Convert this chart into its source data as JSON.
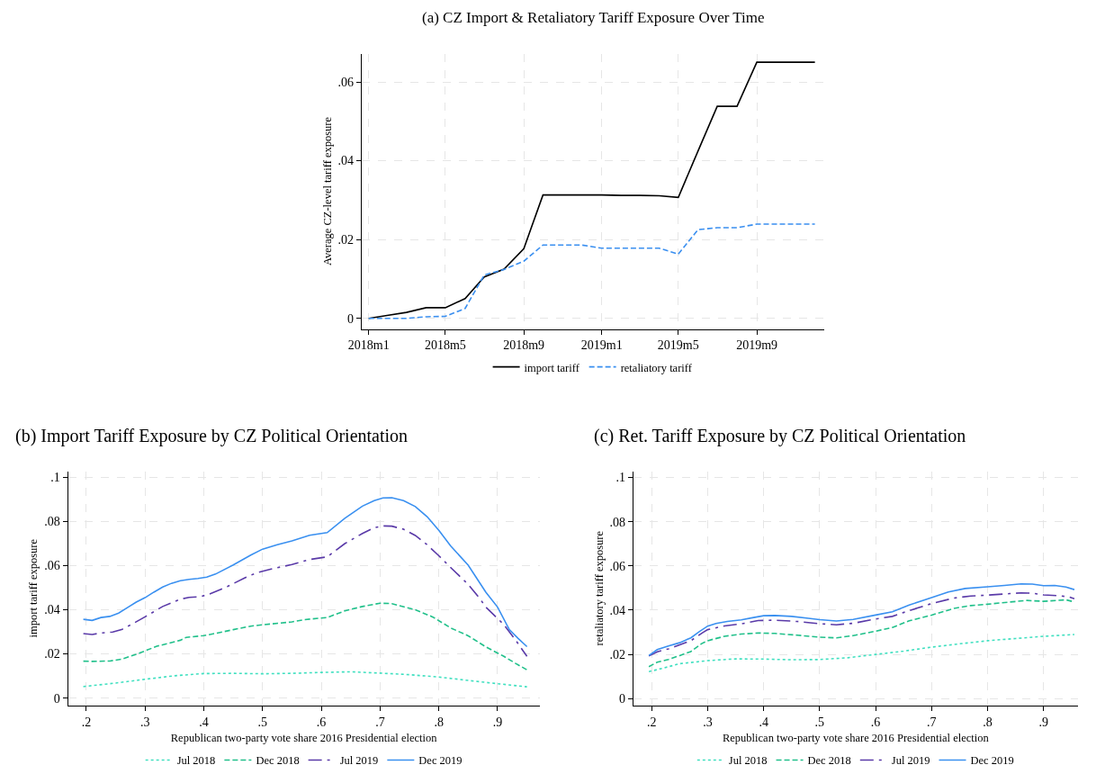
{
  "chart_data": [
    {
      "type": "line",
      "title": "(a) CZ Import & Retaliatory Tariff Exposure Over Time",
      "ylabel": "Average CZ-level tariff exposure",
      "x": [
        "2018-01",
        "2018-02",
        "2018-03",
        "2018-04",
        "2018-05",
        "2018-06",
        "2018-07",
        "2018-08",
        "2018-09",
        "2018-10",
        "2018-11",
        "2018-12",
        "2019-01",
        "2019-02",
        "2019-03",
        "2019-04",
        "2019-05",
        "2019-06",
        "2019-07",
        "2019-08",
        "2019-09",
        "2019-10",
        "2019-11",
        "2019-12"
      ],
      "series": [
        {
          "name": "import tariff",
          "color": "#000000",
          "line_style": "solid",
          "values": [
            0,
            0.0008,
            0.0015,
            0.0027,
            0.0027,
            0.005,
            0.0105,
            0.0125,
            0.0177,
            0.0313,
            0.0313,
            0.0313,
            0.0313,
            0.0312,
            0.0312,
            0.0311,
            0.0307,
            0.0425,
            0.0538,
            0.0538,
            0.065,
            0.065,
            0.065,
            0.065
          ]
        },
        {
          "name": "retaliatory tariff",
          "color": "#3a8ff0",
          "line_style": "dashed",
          "values": [
            0,
            0,
            0,
            0.0004,
            0.0005,
            0.0025,
            0.011,
            0.0124,
            0.0145,
            0.0186,
            0.0186,
            0.0186,
            0.0178,
            0.0178,
            0.0178,
            0.0178,
            0.0163,
            0.0225,
            0.023,
            0.023,
            0.0239,
            0.0239,
            0.0239,
            0.0239
          ]
        }
      ],
      "xlim": [
        "2017-12-21",
        "2019-12-16"
      ],
      "ylim": [
        -0.0027,
        0.0672
      ],
      "xticks": [
        {
          "value": "2018-01",
          "label": "2018m1"
        },
        {
          "value": "2018-05",
          "label": "2018m5"
        },
        {
          "value": "2018-09",
          "label": "2018m9"
        },
        {
          "value": "2019-01",
          "label": "2019m1"
        },
        {
          "value": "2019-05",
          "label": "2019m5"
        },
        {
          "value": "2019-09",
          "label": "2019m9"
        }
      ],
      "yticks": [
        {
          "value": 0,
          "label": "0"
        },
        {
          "value": 0.02,
          "label": ".02"
        },
        {
          "value": 0.04,
          "label": ".04"
        },
        {
          "value": 0.06,
          "label": ".06"
        }
      ],
      "grid": true,
      "legend": "bottom"
    },
    {
      "type": "line",
      "title": "(b) Import Tariff Exposure by CZ Political Orientation",
      "xlabel": "Republican two-party vote share 2016 Presidential election",
      "ylabel": "import tariff exposure",
      "series": [
        {
          "name": "Jul 2018",
          "color": "#40e0c0",
          "line_style": "dotted",
          "x": [
            0.195,
            0.25,
            0.3,
            0.35,
            0.4,
            0.45,
            0.5,
            0.55,
            0.6,
            0.65,
            0.7,
            0.75,
            0.8,
            0.85,
            0.9,
            0.95
          ],
          "values": [
            0.0052,
            0.0068,
            0.0085,
            0.0101,
            0.0111,
            0.0112,
            0.011,
            0.0112,
            0.0116,
            0.0119,
            0.0113,
            0.0106,
            0.0095,
            0.008,
            0.0065,
            0.0051
          ]
        },
        {
          "name": "Dec 2018",
          "color": "#20c08a",
          "line_style": "dashed",
          "x": [
            0.195,
            0.21,
            0.24,
            0.26,
            0.29,
            0.32,
            0.34,
            0.36,
            0.37,
            0.4,
            0.42,
            0.45,
            0.48,
            0.5,
            0.55,
            0.57,
            0.61,
            0.64,
            0.67,
            0.7,
            0.72,
            0.76,
            0.79,
            0.82,
            0.85,
            0.88,
            0.91,
            0.93,
            0.95
          ],
          "values": [
            0.0167,
            0.0166,
            0.0168,
            0.0176,
            0.0203,
            0.0235,
            0.0248,
            0.0262,
            0.0275,
            0.0283,
            0.0293,
            0.031,
            0.0326,
            0.0332,
            0.0345,
            0.0355,
            0.0365,
            0.0395,
            0.0415,
            0.043,
            0.0428,
            0.04,
            0.0367,
            0.0318,
            0.0282,
            0.0232,
            0.019,
            0.0158,
            0.0128
          ]
        },
        {
          "name": "Jul 2019",
          "color": "#5a3aa8",
          "line_style": "dashdot",
          "x": [
            0.195,
            0.21,
            0.225,
            0.245,
            0.26,
            0.28,
            0.3,
            0.33,
            0.36,
            0.375,
            0.395,
            0.41,
            0.44,
            0.47,
            0.49,
            0.52,
            0.55,
            0.58,
            0.61,
            0.64,
            0.67,
            0.69,
            0.705,
            0.72,
            0.74,
            0.76,
            0.78,
            0.8,
            0.82,
            0.85,
            0.87,
            0.88,
            0.91,
            0.93,
            0.95
          ],
          "values": [
            0.0292,
            0.0288,
            0.0295,
            0.0299,
            0.031,
            0.0338,
            0.0368,
            0.0415,
            0.0448,
            0.0456,
            0.046,
            0.0472,
            0.0505,
            0.0545,
            0.0568,
            0.0588,
            0.0605,
            0.0628,
            0.064,
            0.07,
            0.0746,
            0.0772,
            0.078,
            0.0779,
            0.0765,
            0.0737,
            0.0695,
            0.0645,
            0.0592,
            0.0515,
            0.045,
            0.0412,
            0.0335,
            0.0265,
            0.0189
          ]
        },
        {
          "name": "Dec 2019",
          "color": "#3a90f0",
          "line_style": "solid",
          "x": [
            0.195,
            0.21,
            0.225,
            0.24,
            0.255,
            0.27,
            0.285,
            0.3,
            0.315,
            0.33,
            0.345,
            0.36,
            0.375,
            0.39,
            0.405,
            0.42,
            0.45,
            0.48,
            0.5,
            0.525,
            0.55,
            0.58,
            0.61,
            0.64,
            0.67,
            0.69,
            0.705,
            0.72,
            0.74,
            0.76,
            0.78,
            0.8,
            0.82,
            0.85,
            0.88,
            0.9,
            0.92,
            0.935,
            0.95
          ],
          "values": [
            0.0357,
            0.0352,
            0.0365,
            0.037,
            0.0385,
            0.041,
            0.0435,
            0.0455,
            0.048,
            0.0503,
            0.052,
            0.0532,
            0.0538,
            0.0542,
            0.0548,
            0.0562,
            0.0603,
            0.0648,
            0.0675,
            0.0695,
            0.0712,
            0.0738,
            0.075,
            0.0815,
            0.087,
            0.0895,
            0.0907,
            0.0908,
            0.0895,
            0.0868,
            0.0822,
            0.076,
            0.069,
            0.0602,
            0.048,
            0.0412,
            0.031,
            0.027,
            0.0233
          ]
        }
      ],
      "xlim": [
        0.169,
        0.9715
      ],
      "ylim": [
        -0.0033,
        0.1028
      ],
      "xticks": [
        {
          "value": 0.2,
          "label": ".2"
        },
        {
          "value": 0.3,
          "label": ".3"
        },
        {
          "value": 0.4,
          "label": ".4"
        },
        {
          "value": 0.5,
          "label": ".5"
        },
        {
          "value": 0.6,
          "label": ".6"
        },
        {
          "value": 0.7,
          "label": ".7"
        },
        {
          "value": 0.8,
          "label": ".8"
        },
        {
          "value": 0.9,
          "label": ".9"
        }
      ],
      "yticks": [
        {
          "value": 0,
          "label": "0"
        },
        {
          "value": 0.02,
          "label": ".02"
        },
        {
          "value": 0.04,
          "label": ".04"
        },
        {
          "value": 0.06,
          "label": ".06"
        },
        {
          "value": 0.08,
          "label": ".08"
        },
        {
          "value": 0.1,
          "label": ".1"
        }
      ],
      "grid": true,
      "legend": "bottom"
    },
    {
      "type": "line",
      "title": "(c) Ret. Tariff Exposure by CZ Political Orientation",
      "xlabel": "Republican two-party vote share 2016 Presidential election",
      "ylabel": "retaliatory tariff exposure",
      "series": [
        {
          "name": "Jul 2018",
          "color": "#40e0c0",
          "line_style": "dotted",
          "x": [
            0.195,
            0.22,
            0.25,
            0.3,
            0.35,
            0.4,
            0.45,
            0.5,
            0.55,
            0.6,
            0.65,
            0.7,
            0.75,
            0.8,
            0.85,
            0.9,
            0.955
          ],
          "values": [
            0.0122,
            0.0138,
            0.0158,
            0.0172,
            0.018,
            0.0179,
            0.0176,
            0.0177,
            0.0185,
            0.02,
            0.0215,
            0.0233,
            0.0248,
            0.0262,
            0.0272,
            0.0282,
            0.029
          ]
        },
        {
          "name": "Dec 2018",
          "color": "#20c08a",
          "line_style": "dashed",
          "x": [
            0.195,
            0.21,
            0.23,
            0.25,
            0.27,
            0.29,
            0.3,
            0.33,
            0.36,
            0.39,
            0.42,
            0.46,
            0.5,
            0.53,
            0.56,
            0.6,
            0.63,
            0.66,
            0.7,
            0.74,
            0.77,
            0.8,
            0.84,
            0.87,
            0.9,
            0.94,
            0.955
          ],
          "values": [
            0.0145,
            0.0165,
            0.0177,
            0.0195,
            0.0213,
            0.025,
            0.0262,
            0.0282,
            0.0292,
            0.0297,
            0.0295,
            0.0287,
            0.0278,
            0.0275,
            0.0285,
            0.0305,
            0.0322,
            0.0352,
            0.0378,
            0.0408,
            0.0421,
            0.0427,
            0.0437,
            0.0444,
            0.044,
            0.0447,
            0.0437
          ]
        },
        {
          "name": "Jul 2019",
          "color": "#5a3aa8",
          "line_style": "dashdot",
          "x": [
            0.195,
            0.21,
            0.23,
            0.25,
            0.27,
            0.29,
            0.3,
            0.33,
            0.36,
            0.39,
            0.42,
            0.46,
            0.5,
            0.53,
            0.56,
            0.6,
            0.63,
            0.66,
            0.7,
            0.74,
            0.77,
            0.8,
            0.84,
            0.86,
            0.88,
            0.9,
            0.93,
            0.945,
            0.955
          ],
          "values": [
            0.0193,
            0.0212,
            0.0225,
            0.0243,
            0.0262,
            0.0297,
            0.0312,
            0.0329,
            0.0338,
            0.0353,
            0.0355,
            0.0349,
            0.0339,
            0.0334,
            0.0341,
            0.036,
            0.0372,
            0.0398,
            0.043,
            0.0455,
            0.0464,
            0.0468,
            0.0475,
            0.0478,
            0.0477,
            0.0469,
            0.0465,
            0.046,
            0.0452
          ]
        },
        {
          "name": "Dec 2019",
          "color": "#3a90f0",
          "line_style": "solid",
          "x": [
            0.195,
            0.21,
            0.23,
            0.25,
            0.27,
            0.285,
            0.3,
            0.315,
            0.335,
            0.36,
            0.38,
            0.4,
            0.42,
            0.45,
            0.48,
            0.5,
            0.53,
            0.56,
            0.6,
            0.63,
            0.66,
            0.7,
            0.73,
            0.76,
            0.8,
            0.83,
            0.86,
            0.88,
            0.9,
            0.92,
            0.94,
            0.955
          ],
          "values": [
            0.0195,
            0.0222,
            0.0238,
            0.0253,
            0.0275,
            0.0303,
            0.0328,
            0.034,
            0.0349,
            0.0356,
            0.0366,
            0.0375,
            0.0376,
            0.0372,
            0.0363,
            0.0357,
            0.0351,
            0.0358,
            0.0378,
            0.0393,
            0.0423,
            0.0457,
            0.0482,
            0.0498,
            0.0506,
            0.0512,
            0.0519,
            0.0518,
            0.0511,
            0.0512,
            0.0505,
            0.0493
          ]
        }
      ],
      "xlim": [
        0.1675,
        0.961
      ],
      "ylim": [
        -0.003,
        0.1028
      ],
      "xticks": [
        {
          "value": 0.2,
          "label": ".2"
        },
        {
          "value": 0.3,
          "label": ".3"
        },
        {
          "value": 0.4,
          "label": ".4"
        },
        {
          "value": 0.5,
          "label": ".5"
        },
        {
          "value": 0.6,
          "label": ".6"
        },
        {
          "value": 0.7,
          "label": ".7"
        },
        {
          "value": 0.8,
          "label": ".8"
        },
        {
          "value": 0.9,
          "label": ".9"
        }
      ],
      "yticks": [
        {
          "value": 0,
          "label": "0"
        },
        {
          "value": 0.02,
          "label": ".02"
        },
        {
          "value": 0.04,
          "label": ".04"
        },
        {
          "value": 0.06,
          "label": ".06"
        },
        {
          "value": 0.08,
          "label": ".08"
        },
        {
          "value": 0.1,
          "label": ".1"
        }
      ],
      "grid": true,
      "legend": "bottom"
    }
  ]
}
